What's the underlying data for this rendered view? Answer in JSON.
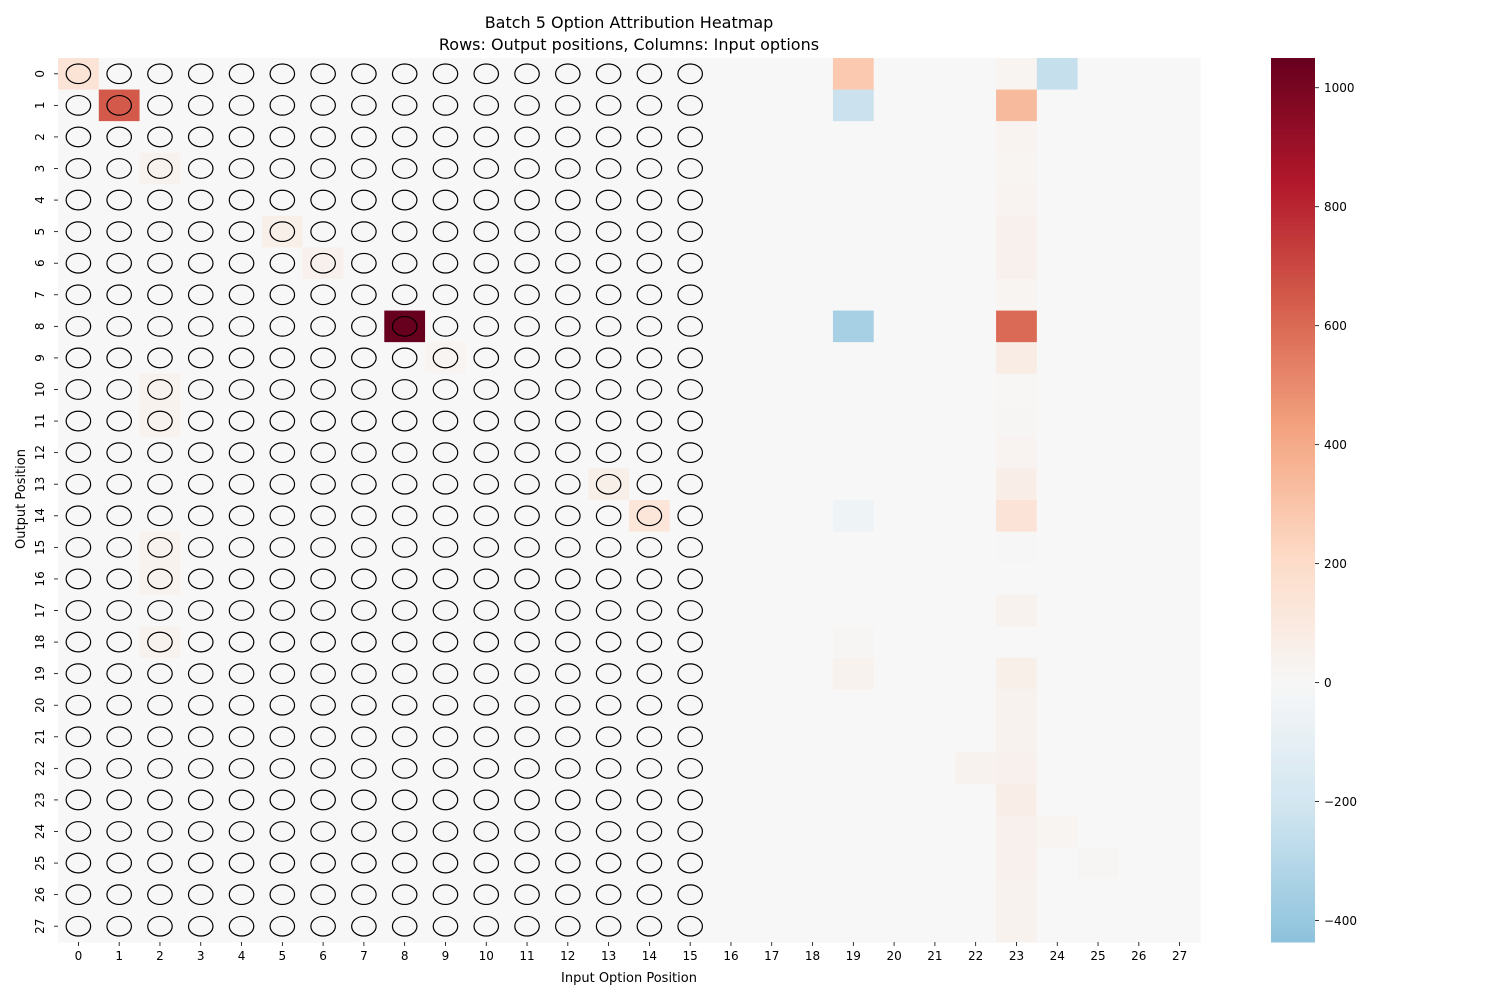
{
  "chart_data": {
    "type": "heatmap",
    "title": "Batch 5 Option Attribution Heatmap",
    "subtitle": "Rows: Output positions, Columns: Input options",
    "xlabel": "Input Option Position",
    "ylabel": "Output Position",
    "x_ticks": [
      "0",
      "1",
      "2",
      "3",
      "4",
      "5",
      "6",
      "7",
      "8",
      "9",
      "10",
      "11",
      "12",
      "13",
      "14",
      "15",
      "16",
      "17",
      "18",
      "19",
      "20",
      "21",
      "22",
      "23",
      "24",
      "25",
      "26",
      "27"
    ],
    "y_ticks": [
      "0",
      "1",
      "2",
      "3",
      "4",
      "5",
      "6",
      "7",
      "8",
      "9",
      "10",
      "11",
      "12",
      "13",
      "14",
      "15",
      "16",
      "17",
      "18",
      "19",
      "20",
      "21",
      "22",
      "23",
      "24",
      "25",
      "26",
      "27"
    ],
    "colormap": "RdBu_r",
    "color_range": [
      -436,
      1050
    ],
    "colorbar_ticks": [
      1000,
      800,
      600,
      400,
      200,
      0,
      -200,
      -400
    ],
    "grid": false,
    "colorbar_position": "right",
    "circled_region": {
      "rows": 28,
      "cols": 16,
      "note": "ellipse markers drawn on cells of columns 0-15"
    },
    "nonzero_cells": [
      {
        "row": 0,
        "col": 0,
        "value": 150
      },
      {
        "row": 0,
        "col": 19,
        "value": 280
      },
      {
        "row": 0,
        "col": 23,
        "value": 20
      },
      {
        "row": 0,
        "col": 24,
        "value": -250
      },
      {
        "row": 1,
        "col": 1,
        "value": 650
      },
      {
        "row": 1,
        "col": 19,
        "value": -230
      },
      {
        "row": 1,
        "col": 23,
        "value": 340
      },
      {
        "row": 2,
        "col": 23,
        "value": 30
      },
      {
        "row": 3,
        "col": 2,
        "value": 40
      },
      {
        "row": 3,
        "col": 23,
        "value": 20
      },
      {
        "row": 4,
        "col": 23,
        "value": 30
      },
      {
        "row": 5,
        "col": 5,
        "value": 60
      },
      {
        "row": 5,
        "col": 23,
        "value": 50
      },
      {
        "row": 6,
        "col": 6,
        "value": 50
      },
      {
        "row": 6,
        "col": 23,
        "value": 50
      },
      {
        "row": 7,
        "col": 23,
        "value": 25
      },
      {
        "row": 8,
        "col": 8,
        "value": 1050
      },
      {
        "row": 8,
        "col": 19,
        "value": -350
      },
      {
        "row": 8,
        "col": 23,
        "value": 600
      },
      {
        "row": 9,
        "col": 9,
        "value": 20
      },
      {
        "row": 9,
        "col": 23,
        "value": 80
      },
      {
        "row": 10,
        "col": 2,
        "value": 40
      },
      {
        "row": 10,
        "col": 23,
        "value": 10
      },
      {
        "row": 11,
        "col": 2,
        "value": 40
      },
      {
        "row": 11,
        "col": 23,
        "value": 15
      },
      {
        "row": 12,
        "col": 23,
        "value": 30
      },
      {
        "row": 13,
        "col": 13,
        "value": 60
      },
      {
        "row": 13,
        "col": 23,
        "value": 70
      },
      {
        "row": 14,
        "col": 14,
        "value": 130
      },
      {
        "row": 14,
        "col": 19,
        "value": -50
      },
      {
        "row": 14,
        "col": 23,
        "value": 140
      },
      {
        "row": 15,
        "col": 2,
        "value": 40
      },
      {
        "row": 15,
        "col": 23,
        "value": 5
      },
      {
        "row": 16,
        "col": 2,
        "value": 40
      },
      {
        "row": 17,
        "col": 23,
        "value": 40
      },
      {
        "row": 18,
        "col": 2,
        "value": 40
      },
      {
        "row": 18,
        "col": 19,
        "value": 15
      },
      {
        "row": 19,
        "col": 19,
        "value": 40
      },
      {
        "row": 19,
        "col": 23,
        "value": 60
      },
      {
        "row": 20,
        "col": 23,
        "value": 40
      },
      {
        "row": 21,
        "col": 23,
        "value": 40
      },
      {
        "row": 22,
        "col": 22,
        "value": 40
      },
      {
        "row": 22,
        "col": 23,
        "value": 50
      },
      {
        "row": 23,
        "col": 23,
        "value": 70
      },
      {
        "row": 24,
        "col": 23,
        "value": 50
      },
      {
        "row": 24,
        "col": 24,
        "value": 25
      },
      {
        "row": 25,
        "col": 23,
        "value": 50
      },
      {
        "row": 25,
        "col": 25,
        "value": 15
      },
      {
        "row": 26,
        "col": 23,
        "value": 40
      },
      {
        "row": 27,
        "col": 23,
        "value": 40
      }
    ]
  }
}
